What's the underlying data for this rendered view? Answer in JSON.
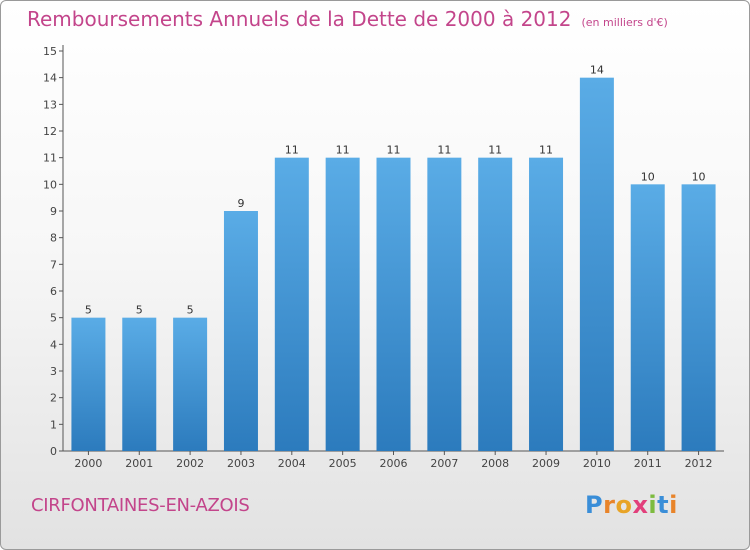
{
  "chart_data": {
    "type": "bar",
    "title": "Remboursements Annuels de la Dette de 2000 à 2012",
    "unit": "(en milliers d'€)",
    "categories": [
      "2000",
      "2001",
      "2002",
      "2003",
      "2004",
      "2005",
      "2006",
      "2007",
      "2008",
      "2009",
      "2010",
      "2011",
      "2012"
    ],
    "values": [
      5,
      5,
      5,
      9,
      11,
      11,
      11,
      11,
      11,
      11,
      14,
      10,
      10
    ],
    "ylim": [
      0,
      15
    ],
    "yticks": [
      0,
      1,
      2,
      3,
      4,
      5,
      6,
      7,
      8,
      9,
      10,
      11,
      12,
      13,
      14,
      15
    ],
    "grid": false,
    "colors": {
      "bar_top": "#5aace6",
      "bar_bottom": "#2c7bbd",
      "title": "#c3458b"
    }
  },
  "commune": "CIRFONTAINES-EN-AZOIS",
  "brand": {
    "letters": [
      "P",
      "r",
      "o",
      "x",
      "i",
      "t",
      "i"
    ],
    "colors": [
      "#3a8ed8",
      "#e8842a",
      "#e8a427",
      "#e23f7b",
      "#7dbb3f",
      "#3a8ed8",
      "#e8842a"
    ]
  }
}
